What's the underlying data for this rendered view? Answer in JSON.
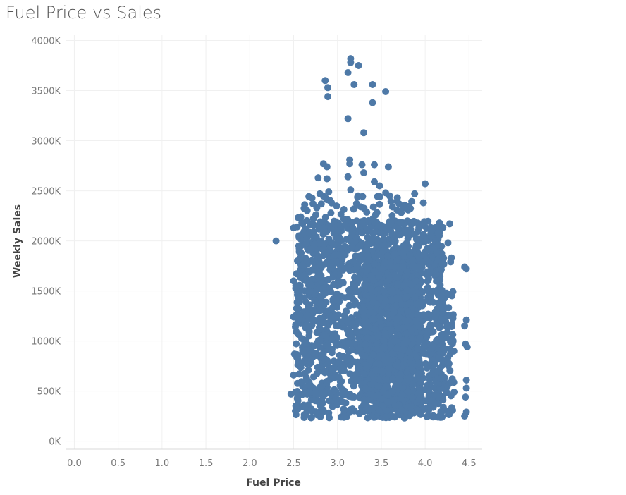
{
  "chart_data": {
    "type": "scatter",
    "title": "Fuel Price vs Sales",
    "xlabel": "Fuel Price",
    "ylabel": "Weekly Sales",
    "xlim": [
      -0.1,
      4.65
    ],
    "ylim": [
      -80000,
      4060000
    ],
    "x_ticks": [
      0.0,
      0.5,
      1.0,
      1.5,
      2.0,
      2.5,
      3.0,
      3.5,
      4.0,
      4.5
    ],
    "x_tick_labels": [
      "0.0",
      "0.5",
      "1.0",
      "1.5",
      "2.0",
      "2.5",
      "3.0",
      "3.5",
      "4.0",
      "4.5"
    ],
    "y_ticks": [
      0,
      500000,
      1000000,
      1500000,
      2000000,
      2500000,
      3000000,
      3500000,
      4000000
    ],
    "y_tick_labels": [
      "0K",
      "500K",
      "1000K",
      "1500K",
      "2000K",
      "2500K",
      "3000K",
      "3500K",
      "4000K"
    ],
    "grid": true,
    "marker_color": "#4e79a7",
    "points": [
      {
        "x": 2.86,
        "y": 3600000
      },
      {
        "x": 2.89,
        "y": 3530000
      },
      {
        "x": 2.89,
        "y": 3440000
      },
      {
        "x": 3.15,
        "y": 3820000
      },
      {
        "x": 3.15,
        "y": 3780000
      },
      {
        "x": 3.24,
        "y": 3750000
      },
      {
        "x": 3.12,
        "y": 3680000
      },
      {
        "x": 3.19,
        "y": 3560000
      },
      {
        "x": 3.4,
        "y": 3560000
      },
      {
        "x": 3.55,
        "y": 3490000
      },
      {
        "x": 3.4,
        "y": 3380000
      },
      {
        "x": 3.12,
        "y": 3220000
      },
      {
        "x": 3.3,
        "y": 3080000
      },
      {
        "x": 3.14,
        "y": 2810000
      },
      {
        "x": 3.14,
        "y": 2770000
      },
      {
        "x": 3.28,
        "y": 2760000
      },
      {
        "x": 3.42,
        "y": 2760000
      },
      {
        "x": 3.58,
        "y": 2740000
      },
      {
        "x": 2.84,
        "y": 2770000
      },
      {
        "x": 2.88,
        "y": 2740000
      },
      {
        "x": 2.78,
        "y": 2630000
      },
      {
        "x": 2.88,
        "y": 2620000
      },
      {
        "x": 3.12,
        "y": 2640000
      },
      {
        "x": 3.3,
        "y": 2680000
      },
      {
        "x": 4.0,
        "y": 2570000
      },
      {
        "x": 3.42,
        "y": 2590000
      },
      {
        "x": 3.48,
        "y": 2550000
      },
      {
        "x": 3.15,
        "y": 2510000
      },
      {
        "x": 3.88,
        "y": 2470000
      },
      {
        "x": 3.55,
        "y": 2480000
      },
      {
        "x": 2.8,
        "y": 2470000
      },
      {
        "x": 2.9,
        "y": 2490000
      },
      {
        "x": 3.98,
        "y": 2380000
      },
      {
        "x": 4.28,
        "y": 2170000
      },
      {
        "x": 4.26,
        "y": 1980000
      },
      {
        "x": 4.15,
        "y": 1960000
      },
      {
        "x": 4.13,
        "y": 1880000
      },
      {
        "x": 4.3,
        "y": 1830000
      },
      {
        "x": 4.29,
        "y": 1790000
      },
      {
        "x": 4.45,
        "y": 1740000
      },
      {
        "x": 4.47,
        "y": 1720000
      },
      {
        "x": 4.47,
        "y": 1210000
      },
      {
        "x": 4.45,
        "y": 1150000
      },
      {
        "x": 4.46,
        "y": 970000
      },
      {
        "x": 4.48,
        "y": 940000
      },
      {
        "x": 4.47,
        "y": 610000
      },
      {
        "x": 4.47,
        "y": 530000
      },
      {
        "x": 4.46,
        "y": 440000
      },
      {
        "x": 4.47,
        "y": 290000
      },
      {
        "x": 4.45,
        "y": 250000
      },
      {
        "x": 2.47,
        "y": 470000
      },
      {
        "x": 2.5,
        "y": 2130000
      },
      {
        "x": 2.54,
        "y": 2140000
      },
      {
        "x": 2.56,
        "y": 2050000
      },
      {
        "x": 2.5,
        "y": 1600000
      },
      {
        "x": 2.5,
        "y": 1240000
      },
      {
        "x": 2.51,
        "y": 870000
      },
      {
        "x": 2.5,
        "y": 660000
      },
      {
        "x": 2.52,
        "y": 300000
      },
      {
        "x": 2.3,
        "y": 2000000
      }
    ],
    "dense_regions": [
      {
        "x_range": [
          2.52,
          4.22
        ],
        "y_range": [
          230000,
          2200000
        ],
        "count": 1700
      },
      {
        "x_range": [
          2.55,
          3.85
        ],
        "y_range": [
          2150000,
          2450000
        ],
        "count": 70
      },
      {
        "x_range": [
          4.18,
          4.33
        ],
        "y_range": [
          230000,
          1500000
        ],
        "count": 60
      },
      {
        "x_range": [
          3.3,
          3.95
        ],
        "y_range": [
          300000,
          1900000
        ],
        "count": 900
      }
    ]
  }
}
